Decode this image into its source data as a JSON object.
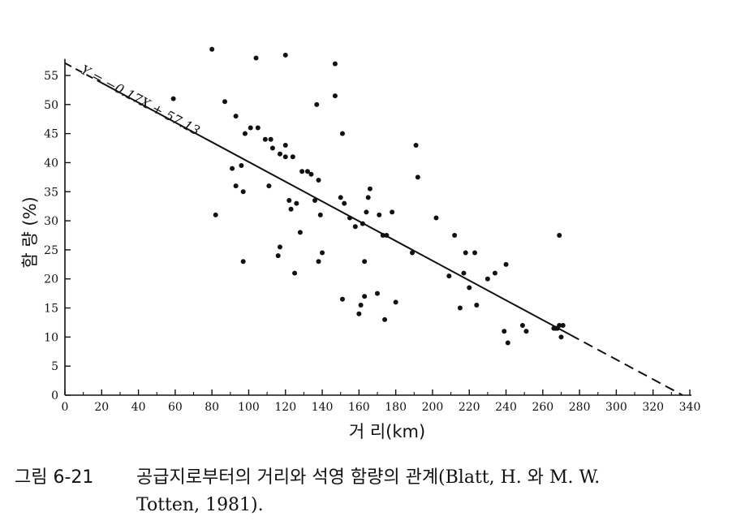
{
  "chart_data": {
    "type": "scatter",
    "title": "",
    "xlabel": "거 리(km)",
    "ylabel": "함 량 (%)",
    "xlim": [
      0,
      340
    ],
    "ylim": [
      0,
      57
    ],
    "x_ticks": [
      "0",
      "20",
      "40",
      "60",
      "80",
      "100",
      "120",
      "140",
      "160",
      "180",
      "200",
      "220",
      "240",
      "260",
      "280",
      "300",
      "320",
      "340"
    ],
    "y_ticks": [
      "0",
      "5",
      "10",
      "15",
      "20",
      "25",
      "30",
      "35",
      "40",
      "45",
      "50",
      "55"
    ],
    "grid": false,
    "legend": "none",
    "regression": {
      "equation": "Y = −0.17X + 57.13",
      "slope": -0.17,
      "intercept": 57.13,
      "solid_range": [
        20,
        275
      ]
    },
    "points": [
      [
        59,
        51
      ],
      [
        80,
        59.5
      ],
      [
        82,
        31
      ],
      [
        87,
        50.5
      ],
      [
        91,
        39
      ],
      [
        93,
        48
      ],
      [
        93,
        36
      ],
      [
        96,
        39.5
      ],
      [
        97,
        23
      ],
      [
        97,
        35
      ],
      [
        98,
        45
      ],
      [
        101,
        46
      ],
      [
        104,
        58
      ],
      [
        105,
        46
      ],
      [
        109,
        44
      ],
      [
        111,
        36
      ],
      [
        112,
        44
      ],
      [
        113,
        42.5
      ],
      [
        116,
        24
      ],
      [
        117,
        25.5
      ],
      [
        117,
        41.5
      ],
      [
        120,
        43
      ],
      [
        120,
        41
      ],
      [
        120,
        58.5
      ],
      [
        122,
        33.5
      ],
      [
        123,
        32
      ],
      [
        124,
        41
      ],
      [
        125,
        21
      ],
      [
        126,
        33
      ],
      [
        128,
        28
      ],
      [
        129,
        38.5
      ],
      [
        132,
        38.5
      ],
      [
        134,
        38
      ],
      [
        136,
        33.5
      ],
      [
        137,
        50
      ],
      [
        138,
        37
      ],
      [
        138,
        23
      ],
      [
        139,
        31
      ],
      [
        140,
        24.5
      ],
      [
        147,
        51.5
      ],
      [
        147,
        57
      ],
      [
        150,
        34
      ],
      [
        151,
        45
      ],
      [
        151,
        16.5
      ],
      [
        152,
        33
      ],
      [
        155,
        30.5
      ],
      [
        158,
        29
      ],
      [
        160,
        14
      ],
      [
        161,
        15.5
      ],
      [
        162,
        29.5
      ],
      [
        163,
        23
      ],
      [
        163,
        17
      ],
      [
        164,
        31.5
      ],
      [
        165,
        34
      ],
      [
        166,
        35.5
      ],
      [
        170,
        17.5
      ],
      [
        171,
        31
      ],
      [
        173,
        27.5
      ],
      [
        174,
        13
      ],
      [
        175,
        27.5
      ],
      [
        178,
        31.5
      ],
      [
        180,
        16
      ],
      [
        189,
        24.5
      ],
      [
        191,
        43
      ],
      [
        192,
        37.5
      ],
      [
        202,
        30.5
      ],
      [
        209,
        20.5
      ],
      [
        212,
        27.5
      ],
      [
        215,
        15
      ],
      [
        217,
        21
      ],
      [
        218,
        24.5
      ],
      [
        220,
        18.5
      ],
      [
        223,
        24.5
      ],
      [
        224,
        15.5
      ],
      [
        230,
        20
      ],
      [
        234,
        21
      ],
      [
        239,
        11
      ],
      [
        240,
        22.5
      ],
      [
        241,
        9
      ],
      [
        249,
        12
      ],
      [
        251,
        11
      ],
      [
        266,
        11.5
      ],
      [
        267,
        11.5
      ],
      [
        268,
        11.5
      ],
      [
        269,
        12
      ],
      [
        269,
        27.5
      ],
      [
        270,
        10
      ],
      [
        271,
        12
      ]
    ]
  },
  "caption": {
    "label": "그림 6-21",
    "line1": "공급지로부터의 거리와 석영 함량의 관계(Blatt, H. 와 M. W.",
    "line2": "Totten, 1981)."
  }
}
